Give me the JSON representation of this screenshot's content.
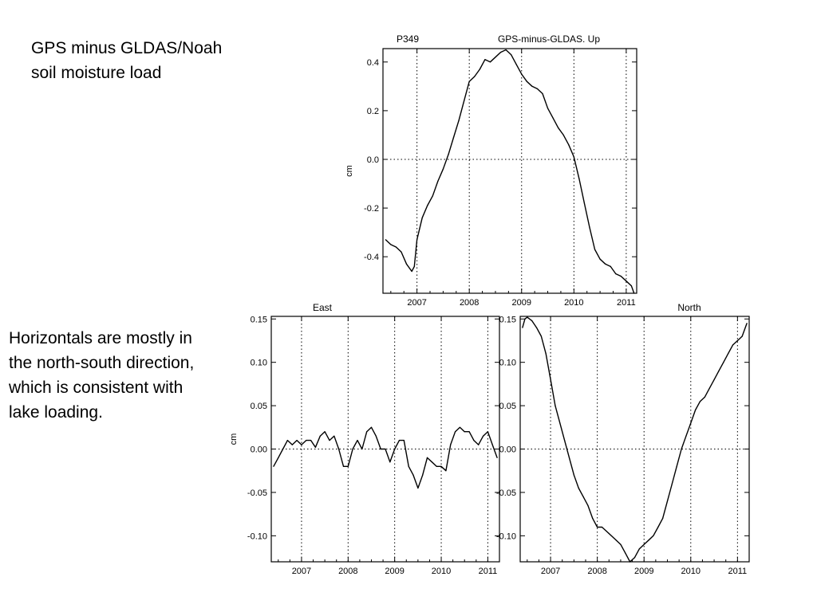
{
  "slide": {
    "heading_lines": [
      "GPS minus GLDAS/Noah",
      "soil moisture load"
    ],
    "note_lines": [
      "Horizontals are mostly in",
      "the north-south direction,",
      "which is consistent with",
      "lake loading."
    ]
  },
  "chart_data": [
    {
      "id": "up",
      "type": "line",
      "station": "P349",
      "title": "GPS-minus-GLDAS.  Up",
      "ylabel": "cm",
      "xlabel": "",
      "xlim": [
        2006.35,
        2011.2
      ],
      "ylim": [
        -0.55,
        0.455
      ],
      "xticks": [
        2007,
        2008,
        2009,
        2010,
        2011
      ],
      "xtick_labels": [
        "2007",
        "2008",
        "2009",
        "2010",
        "2011"
      ],
      "yticks": [
        -0.4,
        -0.2,
        0.0,
        0.2,
        0.4
      ],
      "ytick_labels": [
        "-0.4",
        "-0.2",
        "0.0",
        "0.2",
        "0.4"
      ],
      "grid": "dotted",
      "series": [
        {
          "x": [
            2006.4,
            2006.5,
            2006.6,
            2006.7,
            2006.8,
            2006.9,
            2006.95,
            2007.0,
            2007.1,
            2007.2,
            2007.3,
            2007.4,
            2007.5,
            2007.6,
            2007.7,
            2007.8,
            2007.9,
            2008.0,
            2008.1,
            2008.2,
            2008.3,
            2008.4,
            2008.5,
            2008.6,
            2008.7,
            2008.8,
            2008.9,
            2009.0,
            2009.1,
            2009.2,
            2009.3,
            2009.4,
            2009.5,
            2009.6,
            2009.7,
            2009.8,
            2009.9,
            2010.0,
            2010.1,
            2010.2,
            2010.3,
            2010.4,
            2010.5,
            2010.6,
            2010.7,
            2010.8,
            2010.9,
            2011.0,
            2011.1,
            2011.15
          ],
          "y": [
            -0.33,
            -0.35,
            -0.36,
            -0.38,
            -0.43,
            -0.46,
            -0.44,
            -0.33,
            -0.24,
            -0.19,
            -0.15,
            -0.09,
            -0.04,
            0.02,
            0.09,
            0.16,
            0.24,
            0.32,
            0.34,
            0.37,
            0.41,
            0.4,
            0.42,
            0.44,
            0.45,
            0.43,
            0.39,
            0.35,
            0.32,
            0.3,
            0.29,
            0.27,
            0.21,
            0.17,
            0.13,
            0.1,
            0.06,
            0.01,
            -0.08,
            -0.18,
            -0.28,
            -0.37,
            -0.41,
            -0.43,
            -0.44,
            -0.47,
            -0.48,
            -0.5,
            -0.52,
            -0.55
          ]
        }
      ]
    },
    {
      "id": "east",
      "type": "line",
      "title": "East",
      "ylabel": "cm",
      "xlabel": "",
      "xlim": [
        2006.35,
        2011.25
      ],
      "ylim": [
        -0.13,
        0.153
      ],
      "xticks": [
        2007,
        2008,
        2009,
        2010,
        2011
      ],
      "xtick_labels": [
        "2007",
        "2008",
        "2009",
        "2010",
        "2011"
      ],
      "yticks": [
        -0.1,
        -0.05,
        0.0,
        0.05,
        0.1,
        0.15
      ],
      "ytick_labels": [
        "-0.10",
        "-0.05",
        "0.00",
        "0.05",
        "0.10",
        "0.15"
      ],
      "grid": "dotted",
      "series": [
        {
          "x": [
            2006.4,
            2006.5,
            2006.6,
            2006.7,
            2006.8,
            2006.9,
            2007.0,
            2007.1,
            2007.2,
            2007.3,
            2007.4,
            2007.5,
            2007.6,
            2007.7,
            2007.8,
            2007.9,
            2008.0,
            2008.1,
            2008.2,
            2008.3,
            2008.4,
            2008.5,
            2008.6,
            2008.7,
            2008.8,
            2008.9,
            2009.0,
            2009.1,
            2009.2,
            2009.3,
            2009.4,
            2009.5,
            2009.6,
            2009.7,
            2009.8,
            2009.9,
            2010.0,
            2010.1,
            2010.2,
            2010.3,
            2010.4,
            2010.5,
            2010.6,
            2010.7,
            2010.8,
            2010.9,
            2011.0,
            2011.1,
            2011.2
          ],
          "y": [
            -0.02,
            -0.01,
            0.0,
            0.01,
            0.005,
            0.01,
            0.005,
            0.01,
            0.01,
            0.002,
            0.015,
            0.02,
            0.01,
            0.015,
            0.0,
            -0.02,
            -0.02,
            0.0,
            0.01,
            0.0,
            0.02,
            0.025,
            0.015,
            0.0,
            0.0,
            -0.015,
            0.0,
            0.01,
            0.01,
            -0.02,
            -0.03,
            -0.045,
            -0.03,
            -0.01,
            -0.015,
            -0.02,
            -0.02,
            -0.025,
            0.005,
            0.02,
            0.025,
            0.02,
            0.02,
            0.01,
            0.005,
            0.015,
            0.02,
            0.005,
            -0.01
          ]
        }
      ]
    },
    {
      "id": "north",
      "type": "line",
      "title": "North",
      "ylabel": "",
      "xlabel": "",
      "xlim": [
        2006.35,
        2011.25
      ],
      "ylim": [
        -0.13,
        0.153
      ],
      "xticks": [
        2007,
        2008,
        2009,
        2010,
        2011
      ],
      "xtick_labels": [
        "2007",
        "2008",
        "2009",
        "2010",
        "2011"
      ],
      "yticks": [
        -0.1,
        -0.05,
        0.0,
        0.05,
        0.1,
        0.15
      ],
      "ytick_labels": [
        "-0.10",
        "-0.05",
        "0.00",
        "0.05",
        "0.10",
        "0.15"
      ],
      "grid": "dotted",
      "series": [
        {
          "x": [
            2006.4,
            2006.45,
            2006.5,
            2006.6,
            2006.7,
            2006.8,
            2006.9,
            2007.0,
            2007.1,
            2007.2,
            2007.3,
            2007.4,
            2007.5,
            2007.6,
            2007.7,
            2007.8,
            2007.9,
            2008.0,
            2008.1,
            2008.2,
            2008.3,
            2008.4,
            2008.5,
            2008.6,
            2008.7,
            2008.8,
            2008.9,
            2009.0,
            2009.1,
            2009.2,
            2009.3,
            2009.4,
            2009.5,
            2009.6,
            2009.7,
            2009.8,
            2009.9,
            2010.0,
            2010.1,
            2010.2,
            2010.3,
            2010.4,
            2010.5,
            2010.6,
            2010.7,
            2010.8,
            2010.9,
            2011.0,
            2011.1,
            2011.2
          ],
          "y": [
            0.14,
            0.15,
            0.152,
            0.148,
            0.14,
            0.13,
            0.11,
            0.08,
            0.05,
            0.03,
            0.01,
            -0.01,
            -0.03,
            -0.045,
            -0.055,
            -0.065,
            -0.08,
            -0.09,
            -0.09,
            -0.095,
            -0.1,
            -0.105,
            -0.11,
            -0.12,
            -0.13,
            -0.125,
            -0.115,
            -0.11,
            -0.105,
            -0.1,
            -0.09,
            -0.08,
            -0.06,
            -0.04,
            -0.02,
            0.0,
            0.015,
            0.03,
            0.045,
            0.055,
            0.06,
            0.07,
            0.08,
            0.09,
            0.1,
            0.11,
            0.12,
            0.125,
            0.13,
            0.145
          ]
        }
      ]
    }
  ]
}
